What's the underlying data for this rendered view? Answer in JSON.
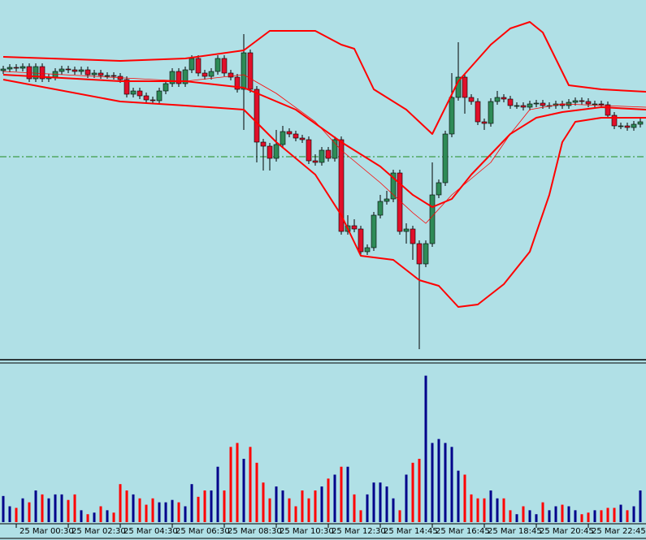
{
  "chart_data": {
    "type": "candlestick",
    "open": [
      353,
      355,
      357,
      356,
      358,
      343,
      358,
      343,
      345,
      352,
      355,
      354,
      352,
      354,
      348,
      350,
      347,
      347,
      346,
      342,
      324,
      328,
      322,
      317,
      316,
      328,
      337,
      352,
      337,
      354,
      368,
      350,
      346,
      352,
      368,
      350,
      345,
      330,
      375,
      330,
      265,
      260,
      245,
      262,
      278,
      275,
      270,
      268,
      242,
      240,
      255,
      245,
      268,
      155,
      162,
      158,
      130,
      135,
      175,
      192,
      195,
      227,
      155,
      158,
      140,
      115,
      140,
      200,
      215,
      275,
      320,
      345,
      320,
      315,
      290,
      288,
      315,
      320,
      318,
      310,
      310,
      308,
      312,
      313,
      310,
      310,
      312,
      310,
      314,
      316,
      315,
      312,
      312,
      311,
      298,
      285,
      285,
      283,
      287
    ],
    "high": [
      359,
      361,
      361,
      362,
      362,
      362,
      362,
      349,
      356,
      359,
      359,
      358,
      358,
      358,
      354,
      354,
      351,
      351,
      350,
      346,
      332,
      332,
      326,
      321,
      332,
      341,
      356,
      356,
      358,
      372,
      372,
      354,
      356,
      372,
      372,
      354,
      349,
      398,
      379,
      334,
      269,
      264,
      280,
      285,
      282,
      279,
      274,
      272,
      250,
      259,
      259,
      272,
      272,
      175,
      170,
      162,
      139,
      179,
      200,
      205,
      231,
      231,
      165,
      162,
      144,
      144,
      240,
      219,
      279,
      350,
      388,
      349,
      324,
      319,
      294,
      319,
      328,
      324,
      322,
      314,
      314,
      316,
      317,
      317,
      314,
      316,
      316,
      318,
      320,
      320,
      319,
      316,
      316,
      315,
      302,
      289,
      289,
      291,
      294
    ],
    "low": [
      349,
      351,
      352,
      352,
      339,
      339,
      339,
      339,
      341,
      348,
      350,
      348,
      348,
      344,
      344,
      343,
      343,
      342,
      338,
      320,
      320,
      318,
      313,
      312,
      312,
      324,
      333,
      333,
      333,
      350,
      346,
      342,
      342,
      348,
      346,
      341,
      326,
      280,
      326,
      240,
      230,
      230,
      241,
      258,
      271,
      266,
      264,
      238,
      236,
      236,
      241,
      241,
      151,
      151,
      154,
      126,
      126,
      131,
      171,
      188,
      191,
      151,
      140,
      120,
      10,
      111,
      136,
      196,
      211,
      271,
      316,
      300,
      311,
      286,
      280,
      284,
      311,
      314,
      306,
      306,
      304,
      304,
      308,
      306,
      306,
      306,
      306,
      306,
      310,
      311,
      308,
      308,
      307,
      294,
      281,
      281,
      279,
      279,
      283
    ],
    "close": [
      355,
      357,
      356,
      358,
      343,
      358,
      343,
      345,
      352,
      355,
      354,
      352,
      354,
      348,
      350,
      347,
      347,
      346,
      342,
      324,
      328,
      322,
      317,
      316,
      328,
      337,
      352,
      337,
      354,
      368,
      350,
      346,
      352,
      368,
      350,
      345,
      330,
      375,
      330,
      265,
      260,
      245,
      262,
      278,
      275,
      270,
      268,
      242,
      240,
      255,
      245,
      268,
      155,
      162,
      158,
      130,
      135,
      175,
      192,
      195,
      227,
      155,
      158,
      140,
      115,
      140,
      200,
      215,
      275,
      320,
      345,
      320,
      315,
      290,
      288,
      315,
      320,
      318,
      310,
      310,
      308,
      312,
      313,
      310,
      310,
      312,
      310,
      314,
      316,
      315,
      312,
      312,
      311,
      298,
      285,
      285,
      283,
      287,
      290
    ],
    "volume": [
      33,
      20,
      18,
      30,
      25,
      40,
      35,
      30,
      35,
      35,
      28,
      35,
      15,
      10,
      12,
      20,
      15,
      12,
      48,
      40,
      35,
      30,
      22,
      30,
      25,
      25,
      28,
      25,
      20,
      48,
      32,
      40,
      40,
      70,
      40,
      95,
      100,
      80,
      95,
      75,
      50,
      30,
      45,
      40,
      30,
      20,
      40,
      30,
      40,
      45,
      55,
      60,
      70,
      70,
      35,
      15,
      35,
      50,
      50,
      45,
      30,
      15,
      60,
      75,
      80,
      185,
      100,
      105,
      100,
      95,
      65,
      60,
      35,
      30,
      30,
      40,
      30,
      30,
      15,
      10,
      20,
      15,
      10,
      25,
      15,
      20,
      22,
      20,
      15,
      10,
      12,
      15,
      15,
      18,
      18,
      22,
      15,
      20,
      40
    ],
    "series": [
      {
        "x": [
          0,
          18,
          28,
          37,
          41,
          48,
          52,
          54,
          57,
          62,
          66,
          70,
          75,
          78,
          81,
          83,
          87,
          92,
          98.9
        ],
        "values": [
          370,
          365,
          368,
          378,
          402,
          402,
          385,
          380,
          330,
          305,
          275,
          340,
          385,
          405,
          413,
          400,
          335,
          330,
          327
        ],
        "color": "#ff0000",
        "width": 2
      },
      {
        "x": [
          0,
          18,
          28,
          37,
          45,
          52,
          58,
          63,
          66,
          69,
          72,
          78,
          82,
          86,
          92,
          98.9
        ],
        "values": [
          348,
          340,
          340,
          332,
          305,
          265,
          235,
          200,
          185,
          195,
          225,
          275,
          295,
          302,
          308,
          305
        ],
        "color": "#ff0000",
        "width": 2
      },
      {
        "x": [
          0,
          18,
          28,
          37,
          42,
          48,
          52,
          55,
          60,
          64,
          67,
          70,
          73,
          77,
          81,
          84,
          86,
          88,
          92,
          98.9
        ],
        "values": [
          342,
          315,
          310,
          305,
          265,
          225,
          175,
          125,
          120,
          95,
          88,
          62,
          65,
          90,
          130,
          200,
          265,
          290,
          295,
          295
        ],
        "color": "#ff0000",
        "width": 2
      },
      {
        "x": [
          0,
          28,
          37,
          42,
          48,
          52,
          58,
          63,
          65,
          69,
          75,
          78,
          81,
          86,
          98.9
        ],
        "values": [
          352,
          340,
          348,
          325,
          290,
          255,
          215,
          178,
          165,
          200,
          240,
          275,
          305,
          312,
          308
        ],
        "color": "#ff0000",
        "width": 0.8
      }
    ],
    "level": 247,
    "level_color": "#228b22",
    "xlim": [
      -0.5,
      98.875
    ],
    "ylim": [
      0,
      440
    ],
    "vlim": [
      0,
      200
    ],
    "xticks": [
      {
        "value": 2,
        "label": "25 Mar 00:30"
      },
      {
        "value": 10,
        "label": "25 Mar 02:30"
      },
      {
        "value": 18,
        "label": "25 Mar 04:30"
      },
      {
        "value": 26,
        "label": "25 Mar 06:30"
      },
      {
        "value": 34,
        "label": "25 Mar 08:30"
      },
      {
        "value": 42,
        "label": "25 Mar 10:30"
      },
      {
        "value": 50,
        "label": "25 Mar 12:30"
      },
      {
        "value": 58,
        "label": "25 Mar 14:45"
      },
      {
        "value": 66,
        "label": "25 Mar 16:45"
      },
      {
        "value": 74,
        "label": "25 Mar 18:45"
      },
      {
        "value": 82,
        "label": "25 Mar 20:45"
      },
      {
        "value": 90,
        "label": "25 Mar 22:45"
      }
    ],
    "up_color": "#2e8b57",
    "down_color": "#e0102a",
    "vol_up_color": "#00008b",
    "vol_down_color": "#ff0000",
    "background": "#b0e0e6"
  }
}
